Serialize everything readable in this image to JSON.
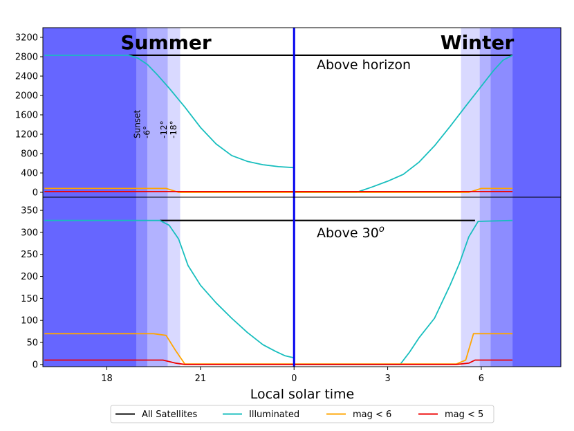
{
  "chart_data": {
    "type": "line",
    "xlabel": "Local solar time",
    "x_ticks": [
      {
        "value": 18,
        "label": "18"
      },
      {
        "value": 21,
        "label": "21"
      },
      {
        "value": 24,
        "label": "0"
      },
      {
        "value": 27,
        "label": "3"
      },
      {
        "value": 30,
        "label": "6"
      }
    ],
    "xlim": [
      15.95,
      32.55
    ],
    "legend_position": "bottom-center",
    "season_labels": {
      "left": "Summer",
      "right": "Winter"
    },
    "midnight_line": {
      "x": 24,
      "color": "#0000ee"
    },
    "colors": {
      "all": "#000000",
      "illuminated": "#17bebe",
      "mag6": "#ffa500",
      "mag5": "#ee0000",
      "night": "#6666ff",
      "twilight": "#9999ff"
    },
    "legend": [
      {
        "key": "all",
        "label": "All Satellites"
      },
      {
        "key": "illuminated",
        "label": "Illuminated"
      },
      {
        "key": "mag6",
        "label": "mag < 6"
      },
      {
        "key": "mag5",
        "label": "mag < 5"
      }
    ],
    "twilight_labels": [
      {
        "x": 19.2,
        "lines": [
          "Sunset",
          "-6°"
        ]
      },
      {
        "x": 20.05,
        "lines": [
          "-12°",
          "-18°"
        ]
      }
    ],
    "panels": [
      {
        "id": "above-horizon",
        "label": "Above horizon",
        "ylim": [
          -100,
          3400
        ],
        "yticks": [
          0,
          400,
          800,
          1200,
          1600,
          2000,
          2400,
          2800,
          3200
        ],
        "bands": [
          {
            "x0": 15.95,
            "x1": 18.95,
            "alpha": 1.0
          },
          {
            "x0": 18.95,
            "x1": 19.3,
            "alpha": 0.75
          },
          {
            "x0": 19.3,
            "x1": 19.95,
            "alpha": 0.5
          },
          {
            "x0": 19.95,
            "x1": 20.35,
            "alpha": 0.25
          },
          {
            "x0": 29.35,
            "x1": 29.95,
            "alpha": 0.25
          },
          {
            "x0": 29.95,
            "x1": 30.3,
            "alpha": 0.5
          },
          {
            "x0": 30.3,
            "x1": 31.0,
            "alpha": 0.75
          },
          {
            "x0": 31.0,
            "x1": 32.55,
            "alpha": 1.0
          }
        ],
        "series": [
          {
            "key": "all",
            "x": [
              18.7,
              31.0
            ],
            "y": [
              2830,
              2830
            ]
          },
          {
            "key": "illuminated",
            "x": [
              16.0,
              18.0,
              18.7,
              19.0,
              19.3,
              19.6,
              20.0,
              20.5,
              21.0,
              21.5,
              22.0,
              22.5,
              23.0,
              23.5,
              24.0,
              24.0,
              26.0,
              26.5,
              27.0,
              27.5,
              28.0,
              28.5,
              29.0,
              29.5,
              30.0,
              30.4,
              30.7,
              31.0
            ],
            "y": [
              2830,
              2830,
              2830,
              2770,
              2640,
              2440,
              2150,
              1760,
              1340,
              1000,
              760,
              640,
              570,
              530,
              510,
              0,
              0,
              110,
              230,
              370,
              620,
              960,
              1360,
              1780,
              2190,
              2520,
              2730,
              2830
            ]
          },
          {
            "key": "mag6",
            "x": [
              16.0,
              19.9,
              20.3,
              29.6,
              30.0,
              31.0
            ],
            "y": [
              80,
              80,
              0,
              0,
              80,
              80
            ]
          },
          {
            "key": "mag5",
            "x": [
              16.0,
              31.0
            ],
            "y": [
              15,
              15
            ]
          }
        ]
      },
      {
        "id": "above-30",
        "label": "Above 30°",
        "ylim": [
          -5,
          380
        ],
        "yticks": [
          0,
          50,
          100,
          150,
          200,
          250,
          300,
          350
        ],
        "bands": [
          {
            "x0": 15.95,
            "x1": 18.95,
            "alpha": 1.0
          },
          {
            "x0": 18.95,
            "x1": 19.3,
            "alpha": 0.75
          },
          {
            "x0": 19.3,
            "x1": 19.95,
            "alpha": 0.5
          },
          {
            "x0": 19.95,
            "x1": 20.35,
            "alpha": 0.25
          },
          {
            "x0": 29.35,
            "x1": 29.95,
            "alpha": 0.25
          },
          {
            "x0": 29.95,
            "x1": 30.3,
            "alpha": 0.5
          },
          {
            "x0": 30.3,
            "x1": 31.0,
            "alpha": 0.75
          },
          {
            "x0": 31.0,
            "x1": 32.55,
            "alpha": 1.0
          }
        ],
        "series": [
          {
            "key": "all",
            "x": [
              19.7,
              29.8
            ],
            "y": [
              327,
              327
            ]
          },
          {
            "key": "illuminated",
            "x": [
              16.0,
              19.7,
              20.0,
              20.3,
              20.6,
              21.0,
              21.5,
              22.0,
              22.5,
              23.0,
              23.4,
              23.7,
              24.0,
              24.0,
              27.4,
              27.7,
              28.0,
              28.5,
              29.0,
              29.3,
              29.6,
              29.9,
              31.0
            ],
            "y": [
              327,
              327,
              316,
              285,
              225,
              180,
              140,
              105,
              73,
              45,
              30,
              20,
              15,
              0,
              0,
              28,
              60,
              105,
              180,
              230,
              290,
              325,
              327
            ]
          },
          {
            "key": "mag6",
            "x": [
              16.0,
              19.5,
              19.9,
              20.2,
              20.5,
              29.2,
              29.5,
              29.75,
              31.0
            ],
            "y": [
              70,
              70,
              66,
              32,
              1,
              1,
              10,
              70,
              70
            ]
          },
          {
            "key": "mag5",
            "x": [
              16.0,
              19.8,
              20.2,
              20.5,
              29.2,
              29.6,
              29.8,
              31.0
            ],
            "y": [
              10,
              10,
              3,
              0,
              0,
              3,
              10,
              10
            ]
          }
        ]
      }
    ]
  }
}
